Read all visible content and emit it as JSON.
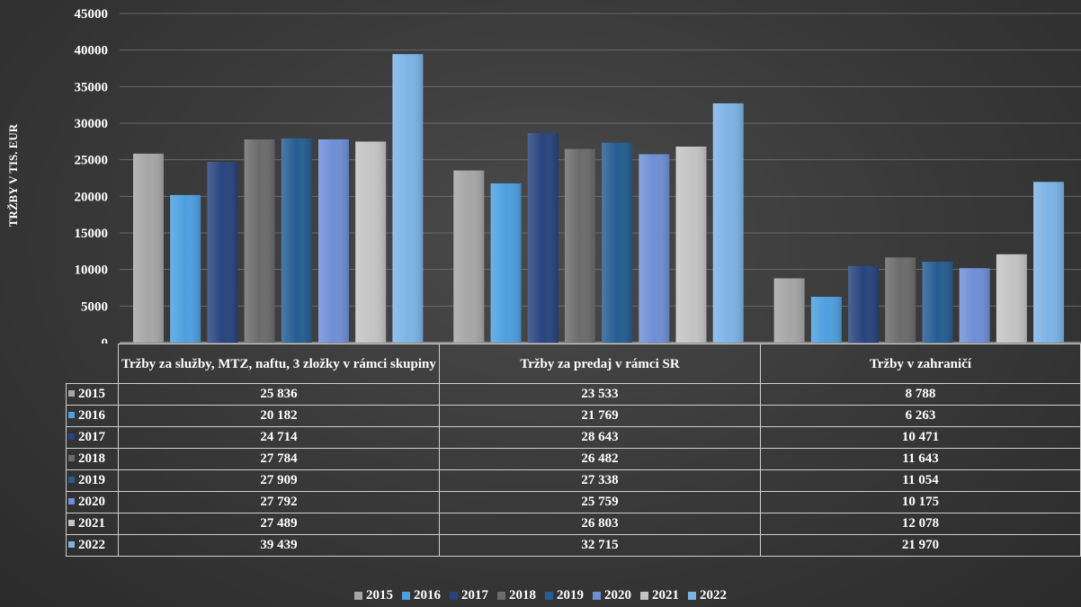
{
  "chart_data": {
    "type": "bar",
    "ylabel": "TRŽBY V TIS. EUR",
    "ylim": [
      0,
      45000
    ],
    "yticks": [
      "0",
      "5000",
      "10000",
      "15000",
      "20000",
      "25000",
      "30000",
      "35000",
      "40000",
      "45000"
    ],
    "grid": true,
    "legend_position": "bottom",
    "categories": [
      "Tržby za služby, MTZ, naftu, 3 zložky v rámci skupiny",
      "Tržby za predaj v rámci SR",
      "Tržby v zahraničí"
    ],
    "series": [
      {
        "name": "2015",
        "color": "#a6a6a6",
        "values": [
          25836,
          23533,
          8788
        ],
        "labels": [
          "25 836",
          "23 533",
          "8 788"
        ]
      },
      {
        "name": "2016",
        "color": "#4d9fe0",
        "values": [
          20182,
          21769,
          6263
        ],
        "labels": [
          "20 182",
          "21 769",
          "6 263"
        ]
      },
      {
        "name": "2017",
        "color": "#27447e",
        "values": [
          24714,
          28643,
          10471
        ],
        "labels": [
          "24 714",
          "28 643",
          "10 471"
        ]
      },
      {
        "name": "2018",
        "color": "#6b6b6b",
        "values": [
          27784,
          26482,
          11643
        ],
        "labels": [
          "27 784",
          "26 482",
          "11 643"
        ]
      },
      {
        "name": "2019",
        "color": "#245d92",
        "values": [
          27909,
          27338,
          11054
        ],
        "labels": [
          "27 909",
          "27 338",
          "11 054"
        ]
      },
      {
        "name": "2020",
        "color": "#6e8fd6",
        "values": [
          27792,
          25759,
          10175
        ],
        "labels": [
          "27 792",
          "25 759",
          "10 175"
        ]
      },
      {
        "name": "2021",
        "color": "#c4c4c4",
        "values": [
          27489,
          26803,
          12078
        ],
        "labels": [
          "27 489",
          "26 803",
          "12 078"
        ]
      },
      {
        "name": "2022",
        "color": "#7cb3e6",
        "values": [
          39439,
          32715,
          21970
        ],
        "labels": [
          "39 439",
          "32 715",
          "21 970"
        ]
      }
    ]
  }
}
